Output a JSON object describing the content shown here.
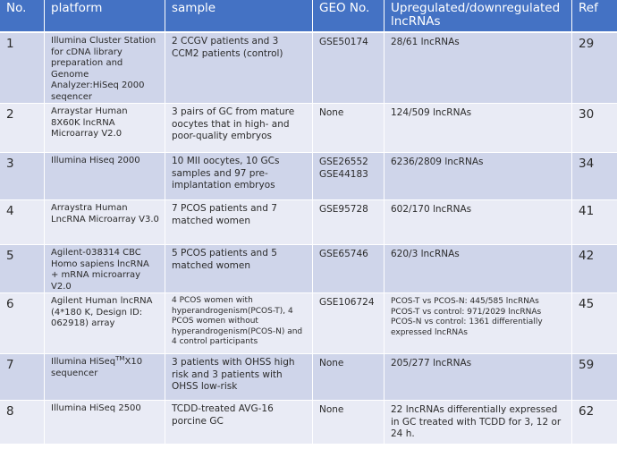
{
  "headers": {
    "no": "No.",
    "platform": "platform",
    "sample": "sample",
    "geo": "GEO No.",
    "regulated": "Upregulated/downregulated lncRNAs",
    "ref": "Ref"
  },
  "rows": [
    {
      "no": "1",
      "platform": "Illumina Cluster Station for cDNA library preparation and Genome Analyzer:HiSeq 2000 seqencer",
      "sample": "2 CCGV patients and 3 CCM2 patients (control)",
      "geo": "GSE50174",
      "regulated": "28/61 lncRNAs",
      "ref": "29"
    },
    {
      "no": "2",
      "platform": "Arraystar Human 8X60K lncRNA Microarray V2.0",
      "sample": "3 pairs of GC from mature oocytes that in high- and poor-quality embryos",
      "geo": "None",
      "regulated": "124/509 lncRNAs",
      "ref": "30"
    },
    {
      "no": "3",
      "platform": "Illumina Hiseq 2000",
      "sample": "10 MII oocytes, 10 GCs samples and 97 pre-implantation embryos",
      "geo": "GSE26552\nGSE44183",
      "regulated": "6236/2809 lncRNAs",
      "ref": "34"
    },
    {
      "no": "4",
      "platform": "Arraystra Human LncRNA Microarray V3.0",
      "sample": "7 PCOS patients and 7 matched women",
      "geo": "GSE95728",
      "regulated": "602/170 lncRNAs",
      "ref": "41"
    },
    {
      "no": "5",
      "platform": "Agilent-038314 CBC Homo sapiens lncRNA + mRNA microarray V2.0",
      "sample": "5 PCOS patients and 5 matched women",
      "geo": "GSE65746",
      "regulated": "620/3 lncRNAs",
      "ref": "42"
    },
    {
      "no": "6",
      "platform": "Agilent Human lncRNA (4*180 K, Design ID: 062918) array",
      "sample": "4 PCOS women with hyperandrogenism(PCOS-T), 4 PCOS women without hyperandrogenism(PCOS-N) and 4 control participants",
      "geo": "GSE106724",
      "regulated": "PCOS-T vs PCOS-N: 445/585 lncRNAs\nPCOS-T vs control: 971/2029 lncRNAs\nPCOS-N vs control: 1361 differentially expressed lncRNAs",
      "ref": "45"
    },
    {
      "no": "7",
      "platform_pre": "Illumina HiSeq",
      "platform_sup": "TM",
      "platform_post": "X10 sequencer",
      "sample": "3 patients with OHSS high risk and 3 patients with OHSS low-risk",
      "geo": "None",
      "regulated": "205/277 lncRNAs",
      "ref": "59"
    },
    {
      "no": "8",
      "platform": "Illumina HiSeq 2500",
      "sample": "TCDD-treated AVG-16 porcine GC",
      "geo": "None",
      "regulated": "22 lncRNAs differentially expressed in GC treated with TCDD for 3, 12 or 24 h.",
      "ref": "62"
    }
  ]
}
